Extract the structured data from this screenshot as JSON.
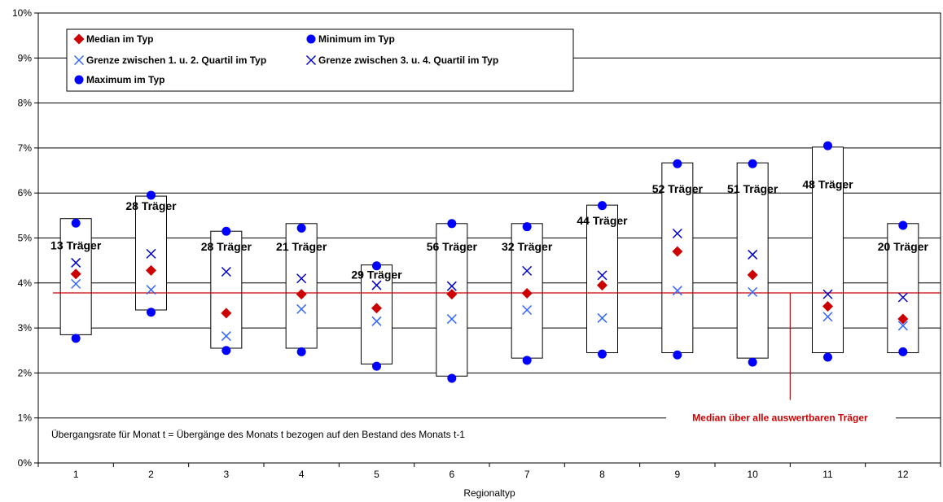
{
  "chart_data": {
    "type": "scatter",
    "xlabel": "Regionaltyp",
    "ylabel": "",
    "categories": [
      "1",
      "2",
      "3",
      "4",
      "5",
      "6",
      "7",
      "8",
      "9",
      "10",
      "11",
      "12"
    ],
    "ylim": [
      0,
      10
    ],
    "y_ticks": [
      "0%",
      "1%",
      "2%",
      "3%",
      "4%",
      "5%",
      "6%",
      "7%",
      "8%",
      "9%",
      "10%"
    ],
    "y_unit": "%",
    "grid": true,
    "legend_position": "top-left",
    "series": [
      {
        "name": "Median im Typ",
        "marker": "diamond",
        "color": "#cc0000",
        "values": [
          4.2,
          4.28,
          3.33,
          3.75,
          3.44,
          3.75,
          3.77,
          3.95,
          4.7,
          4.18,
          3.48,
          3.2
        ]
      },
      {
        "name": "Minimum im Typ",
        "marker": "circle",
        "color": "#0000ff",
        "values": [
          2.77,
          3.35,
          2.5,
          2.47,
          2.15,
          1.88,
          2.28,
          2.42,
          2.4,
          2.24,
          2.35,
          2.47
        ]
      },
      {
        "name": "Grenze zwischen 1. u. 2. Quartil im Typ",
        "marker": "x",
        "color": "#3366ff",
        "values": [
          3.98,
          3.85,
          2.82,
          3.42,
          3.15,
          3.2,
          3.4,
          3.22,
          3.83,
          3.8,
          3.25,
          3.05
        ]
      },
      {
        "name": "Grenze zwischen 3. u. 4. Quartil im Typ",
        "marker": "x",
        "color": "#0000cc",
        "values": [
          4.45,
          4.65,
          4.25,
          4.1,
          3.95,
          3.93,
          4.27,
          4.17,
          5.1,
          4.63,
          3.75,
          3.68
        ]
      },
      {
        "name": "Maximum im Typ",
        "marker": "circle",
        "color": "#0000ff",
        "values": [
          5.33,
          5.95,
          5.15,
          5.22,
          4.38,
          5.32,
          5.25,
          5.72,
          6.65,
          6.65,
          7.05,
          5.28
        ]
      }
    ],
    "box_ranges": [
      [
        2.85,
        5.43
      ],
      [
        3.4,
        5.93
      ],
      [
        2.55,
        5.15
      ],
      [
        2.55,
        5.32
      ],
      [
        2.2,
        4.4
      ],
      [
        1.93,
        5.32
      ],
      [
        2.33,
        5.32
      ],
      [
        2.45,
        5.73
      ],
      [
        2.45,
        6.67
      ],
      [
        2.33,
        6.67
      ],
      [
        2.45,
        7.02
      ],
      [
        2.45,
        5.32
      ]
    ],
    "counts": [
      "13 Träger",
      "28 Träger",
      "28 Träger",
      "21 Träger",
      "29 Träger",
      "56 Träger",
      "32 Träger",
      "44 Träger",
      "52 Träger",
      "51 Träger",
      "48 Träger",
      "20 Träger"
    ],
    "count_label_y": [
      4.75,
      5.62,
      4.72,
      4.72,
      4.1,
      4.72,
      4.72,
      5.3,
      6.0,
      6.0,
      6.1,
      4.72
    ],
    "reference_line": {
      "value": 3.78,
      "label": "Median über alle auswertbaren Träger",
      "color": "#cc0000",
      "pointer_x": 10.5,
      "pointer_to": 1.4
    },
    "note": "Übergangsrate für Monat t = Übergänge des Monats t bezogen auf den Bestand des Monats t-1"
  }
}
